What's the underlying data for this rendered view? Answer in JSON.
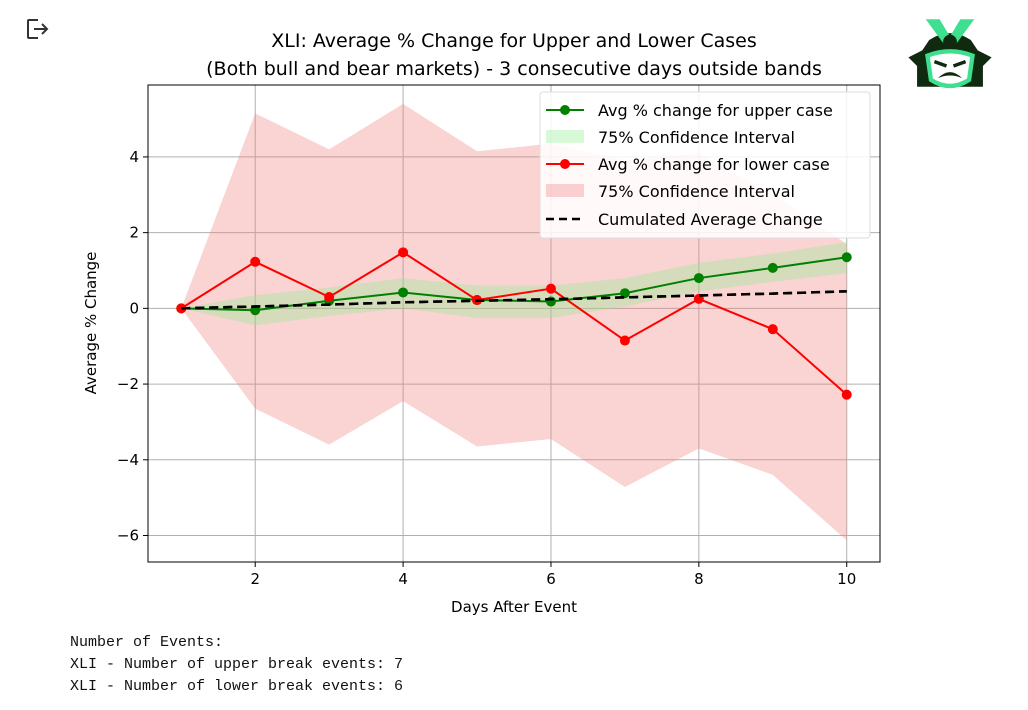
{
  "chart_data": {
    "type": "line",
    "title": "XLI: Average % Change for Upper and Lower Cases",
    "subtitle": "(Both bull and bear markets) - 3 consecutive days outside bands",
    "xlabel": "Days After Event",
    "ylabel": "Average % Change",
    "xlim": [
      0.55,
      10.45
    ],
    "ylim": [
      -6.7,
      5.9
    ],
    "xticks": [
      2,
      4,
      6,
      8,
      10
    ],
    "yticks": [
      -6,
      -4,
      -2,
      0,
      2,
      4
    ],
    "grid": true,
    "legend_position": "top-right",
    "x": [
      1,
      2,
      3,
      4,
      5,
      6,
      7,
      8,
      9,
      10
    ],
    "series": [
      {
        "name": "Avg % change for upper case",
        "color": "#008000",
        "values": [
          0,
          -0.05,
          0.2,
          0.42,
          0.22,
          0.18,
          0.4,
          0.8,
          1.07,
          1.35
        ]
      },
      {
        "name": "Avg % change for lower case",
        "color": "#ff0000",
        "values": [
          0,
          1.23,
          0.3,
          1.48,
          0.22,
          0.52,
          -0.85,
          0.25,
          -0.55,
          -2.28
        ]
      },
      {
        "name": "Cumulated Average Change",
        "color": "#000000",
        "dashed": true,
        "values": [
          0,
          0.05,
          0.1,
          0.16,
          0.2,
          0.24,
          0.29,
          0.34,
          0.39,
          0.45
        ]
      }
    ],
    "bands": [
      {
        "name": "75% Confidence Interval",
        "color": "#90ee90",
        "for": "upper",
        "lower": [
          0,
          -0.45,
          -0.2,
          0.0,
          -0.25,
          -0.25,
          0.05,
          0.45,
          0.7,
          0.93
        ],
        "upper": [
          0,
          0.35,
          0.55,
          0.8,
          0.6,
          0.6,
          0.8,
          1.2,
          1.45,
          1.75
        ]
      },
      {
        "name": "75% Confidence Interval",
        "color": "#f08080",
        "for": "lower",
        "lower": [
          0,
          -2.65,
          -3.6,
          -2.45,
          -3.65,
          -3.45,
          -4.72,
          -3.7,
          -4.4,
          -6.13
        ],
        "upper": [
          0,
          5.15,
          4.2,
          5.4,
          4.15,
          4.35,
          3.9,
          4.1,
          3.0,
          1.7
        ]
      }
    ]
  },
  "output": {
    "line1": "Number of Events:",
    "line2": "XLI - Number of upper break events: 7",
    "line3": "XLI - Number of lower break events: 6"
  },
  "icons": {
    "exit": "exit-icon",
    "logo": "samurai-logo"
  }
}
